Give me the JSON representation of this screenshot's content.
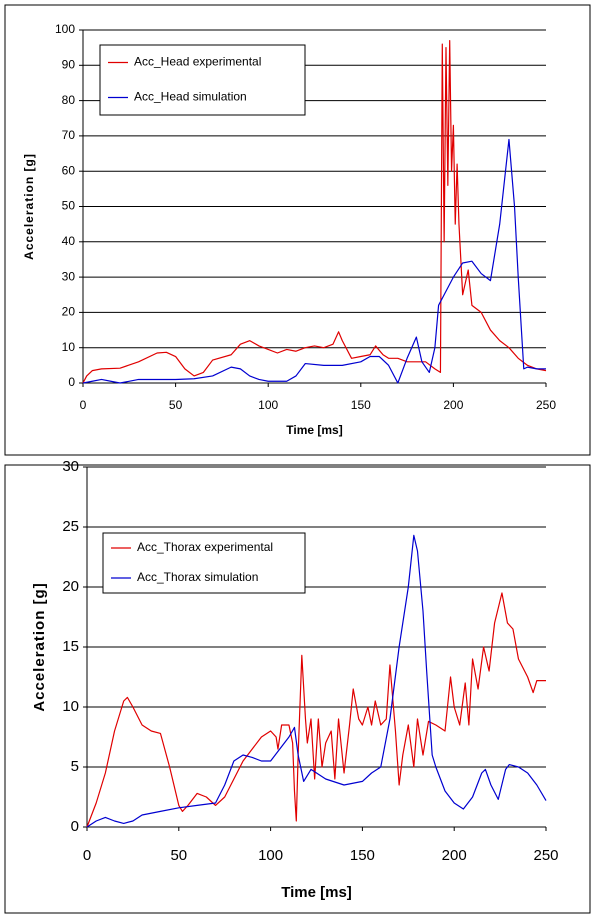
{
  "chart_data": [
    {
      "type": "line",
      "xlabel": "Time [ms]",
      "ylabel": "Acceleration [g]",
      "xlim": [
        0,
        250
      ],
      "xticks": [
        0,
        50,
        100,
        150,
        200,
        250
      ],
      "ylim": [
        0,
        100
      ],
      "yticks": [
        0,
        10,
        20,
        30,
        40,
        50,
        60,
        70,
        80,
        90,
        100
      ],
      "grid": true,
      "legend": "upper left",
      "series": [
        {
          "name": "Acc_Head experimental",
          "color": "#e00000",
          "x": [
            0,
            2,
            5,
            10,
            20,
            30,
            40,
            45,
            50,
            55,
            60,
            65,
            70,
            80,
            85,
            90,
            95,
            100,
            105,
            110,
            115,
            120,
            125,
            130,
            135,
            138,
            140,
            145,
            150,
            155,
            158,
            162,
            165,
            170,
            175,
            180,
            185,
            190,
            193,
            194,
            195,
            196,
            197,
            198,
            199,
            200,
            201,
            202,
            203,
            205,
            208,
            210,
            215,
            220,
            225,
            230,
            235,
            240,
            245,
            250
          ],
          "values": [
            0,
            2,
            3.5,
            4,
            4.2,
            6,
            8.5,
            8.7,
            7.5,
            4,
            2,
            3,
            6.5,
            8,
            11,
            12,
            10.5,
            9.5,
            8.5,
            9.5,
            9,
            10,
            10.5,
            10,
            11,
            14.5,
            12,
            7,
            7.5,
            8,
            10.5,
            8,
            7,
            7,
            6,
            6,
            6,
            4,
            3,
            96,
            40,
            95,
            56,
            97,
            60,
            73,
            45,
            62,
            45,
            25,
            32,
            22,
            20,
            15,
            12,
            10,
            7,
            5,
            4,
            3.5
          ]
        },
        {
          "name": "Acc_Head simulation",
          "color": "#0000d0",
          "x": [
            0,
            5,
            10,
            15,
            20,
            30,
            50,
            60,
            70,
            80,
            85,
            90,
            95,
            100,
            110,
            115,
            120,
            130,
            140,
            150,
            155,
            160,
            165,
            170,
            175,
            180,
            183,
            187,
            190,
            192,
            195,
            200,
            205,
            210,
            215,
            220,
            225,
            230,
            233,
            235,
            238,
            240,
            245,
            250
          ],
          "values": [
            0,
            0.5,
            1,
            0.5,
            0,
            1,
            1,
            1.2,
            2,
            4.5,
            4,
            2,
            1,
            0.5,
            0.5,
            2,
            5.5,
            5,
            5,
            6,
            7.5,
            7.5,
            5,
            0,
            7,
            13,
            6,
            3,
            10,
            22,
            25,
            30,
            34,
            34.5,
            31,
            29,
            45,
            69,
            50,
            30,
            4,
            4.5,
            4,
            4
          ]
        }
      ]
    },
    {
      "type": "line",
      "xlabel": "Time [ms]",
      "ylabel": "Acceleration [g]",
      "xlim": [
        0,
        250
      ],
      "xticks": [
        0,
        50,
        100,
        150,
        200,
        250
      ],
      "ylim": [
        0,
        30
      ],
      "yticks": [
        0,
        5,
        10,
        15,
        20,
        25,
        30
      ],
      "grid": true,
      "legend": "upper left",
      "series": [
        {
          "name": "Acc_Thorax experimental",
          "color": "#e00000",
          "x": [
            0,
            5,
            10,
            15,
            20,
            22,
            25,
            30,
            35,
            40,
            45,
            50,
            52,
            55,
            60,
            65,
            70,
            75,
            80,
            85,
            90,
            95,
            100,
            103,
            104,
            106,
            110,
            112,
            113,
            114,
            115,
            117,
            119,
            120,
            122,
            124,
            126,
            128,
            130,
            133,
            135,
            137,
            140,
            143,
            145,
            148,
            150,
            153,
            155,
            157,
            160,
            163,
            165,
            168,
            170,
            172,
            175,
            178,
            180,
            183,
            186,
            190,
            195,
            198,
            200,
            203,
            206,
            208,
            210,
            213,
            216,
            219,
            222,
            226,
            229,
            232,
            235,
            240,
            243,
            245,
            250
          ],
          "values": [
            0,
            2,
            4.5,
            8,
            10.5,
            10.8,
            10,
            8.5,
            8,
            7.8,
            5,
            1.8,
            1.3,
            1.8,
            2.8,
            2.5,
            1.8,
            2.5,
            4,
            5.5,
            6.5,
            7.5,
            8,
            7.5,
            6.5,
            8.5,
            8.5,
            7,
            3,
            0.5,
            6,
            14.3,
            9,
            7,
            9,
            4,
            9,
            5,
            7,
            8,
            4,
            9,
            4.5,
            8.5,
            11.5,
            9,
            8.5,
            10,
            8.5,
            10.5,
            8.5,
            9,
            13.5,
            8,
            3.5,
            6,
            8.5,
            5,
            9,
            6,
            8.8,
            8.5,
            8,
            12.5,
            10,
            8.5,
            12,
            8.5,
            14,
            11.5,
            15,
            13,
            17,
            19.5,
            17,
            16.5,
            14,
            12.5,
            11.2,
            12.2,
            12.2
          ]
        },
        {
          "name": "Acc_Thorax simulation",
          "color": "#0000d0",
          "x": [
            0,
            5,
            10,
            15,
            20,
            25,
            30,
            40,
            50,
            60,
            70,
            75,
            80,
            85,
            90,
            95,
            100,
            105,
            110,
            113,
            115,
            118,
            122,
            130,
            140,
            150,
            155,
            160,
            165,
            170,
            175,
            178,
            180,
            183,
            185,
            188,
            190,
            195,
            200,
            205,
            210,
            215,
            217,
            220,
            224,
            228,
            230,
            235,
            240,
            245,
            250
          ],
          "values": [
            0,
            0.5,
            0.8,
            0.5,
            0.3,
            0.5,
            1,
            1.3,
            1.6,
            1.8,
            2,
            3.5,
            5.5,
            6,
            5.8,
            5.5,
            5.5,
            6.5,
            7.5,
            8.3,
            6,
            3.8,
            4.8,
            4,
            3.5,
            3.8,
            4.5,
            5,
            9,
            15,
            20,
            24.3,
            23,
            18,
            13,
            6,
            5,
            3,
            2,
            1.5,
            2.5,
            4.5,
            4.8,
            3.5,
            2.3,
            4.8,
            5.2,
            5,
            4.5,
            3.5,
            2.2
          ]
        }
      ]
    }
  ]
}
